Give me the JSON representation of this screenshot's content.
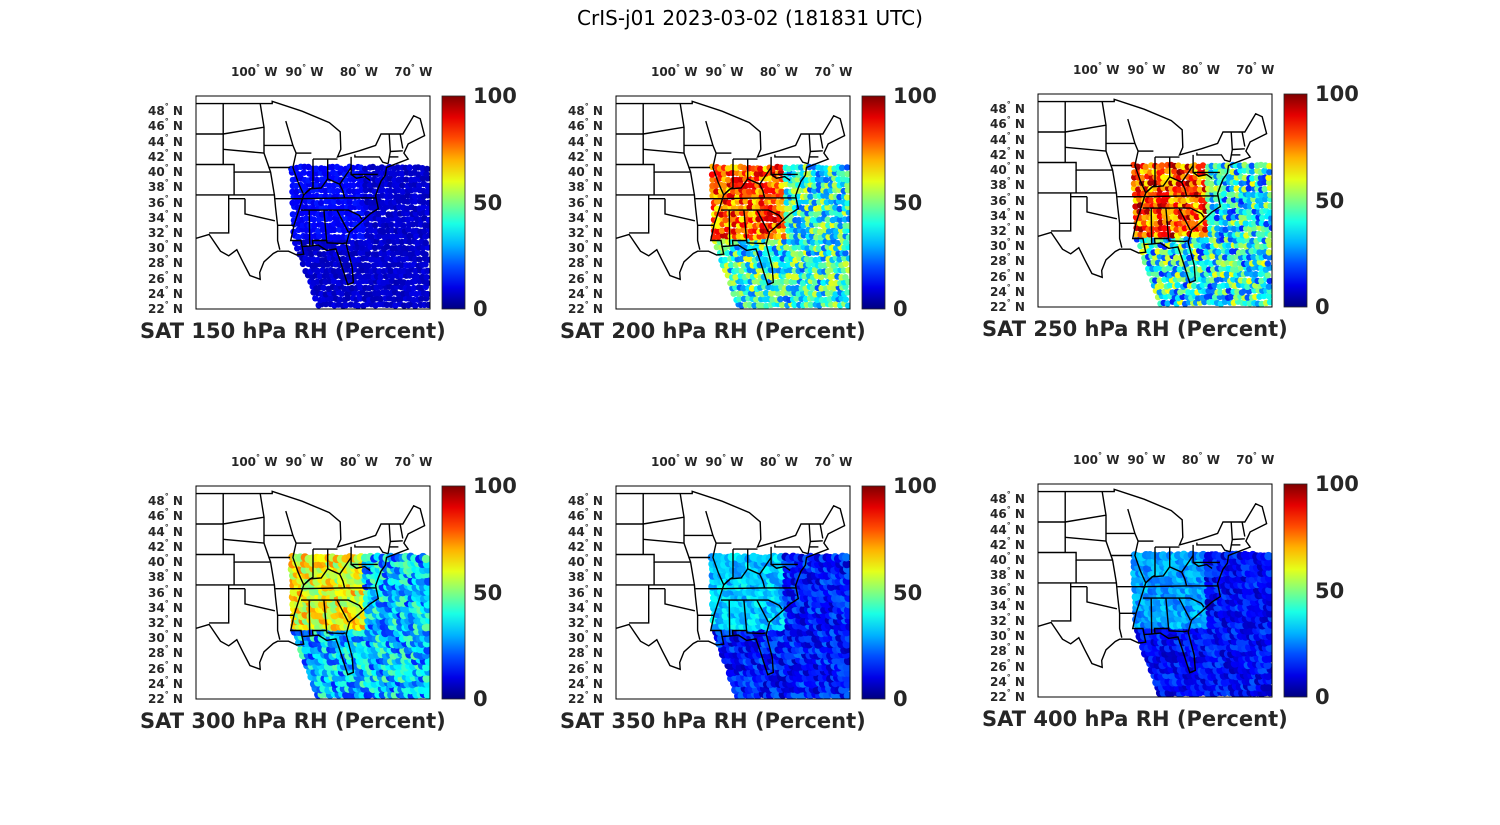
{
  "title": "CrIS-j01 2023-03-02 (181831 UTC)",
  "lon_ticks": [
    {
      "label": "100",
      "suffix": "W",
      "deg": -100
    },
    {
      "label": "90",
      "suffix": "W",
      "deg": -90
    },
    {
      "label": "80",
      "suffix": "W",
      "deg": -80
    },
    {
      "label": "70",
      "suffix": "W",
      "deg": -70
    }
  ],
  "lat_ticks": [
    {
      "label": "48",
      "suffix": "N",
      "deg": 48
    },
    {
      "label": "46",
      "suffix": "N",
      "deg": 46
    },
    {
      "label": "44",
      "suffix": "N",
      "deg": 44
    },
    {
      "label": "42",
      "suffix": "N",
      "deg": 42
    },
    {
      "label": "40",
      "suffix": "N",
      "deg": 40
    },
    {
      "label": "38",
      "suffix": "N",
      "deg": 38
    },
    {
      "label": "36",
      "suffix": "N",
      "deg": 36
    },
    {
      "label": "34",
      "suffix": "N",
      "deg": 34
    },
    {
      "label": "32",
      "suffix": "N",
      "deg": 32
    },
    {
      "label": "30",
      "suffix": "N",
      "deg": 30
    },
    {
      "label": "28",
      "suffix": "N",
      "deg": 28
    },
    {
      "label": "26",
      "suffix": "N",
      "deg": 26
    },
    {
      "label": "24",
      "suffix": "N",
      "deg": 24
    },
    {
      "label": "22",
      "suffix": "N",
      "deg": 22
    }
  ],
  "colorbar": {
    "ticks": [
      "100",
      "50",
      "0"
    ],
    "min": 0,
    "max": 100,
    "colormap": "jet"
  },
  "map_extent": {
    "lon": [
      -109,
      -66
    ],
    "lat": [
      22,
      50
    ]
  },
  "panels": [
    {
      "title": "SAT 150 hPa RH (Percent)",
      "level_hpa": 150,
      "typical_rh": [
        5,
        15
      ]
    },
    {
      "title": "SAT 200 hPa RH (Percent)",
      "level_hpa": 200,
      "typical_rh": [
        20,
        95
      ]
    },
    {
      "title": "SAT 250 hPa RH (Percent)",
      "level_hpa": 250,
      "typical_rh": [
        15,
        100
      ]
    },
    {
      "title": "SAT 300 hPa RH (Percent)",
      "level_hpa": 300,
      "typical_rh": [
        15,
        75
      ]
    },
    {
      "title": "SAT 350 hPa RH (Percent)",
      "level_hpa": 350,
      "typical_rh": [
        5,
        40
      ]
    },
    {
      "title": "SAT 400 hPa RH (Percent)",
      "level_hpa": 400,
      "typical_rh": [
        5,
        35
      ]
    }
  ]
}
